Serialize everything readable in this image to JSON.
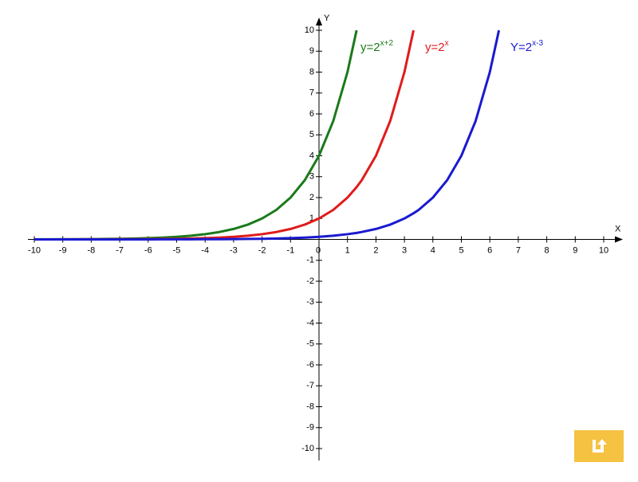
{
  "chart_data": {
    "type": "line",
    "x_label": "X",
    "y_label": "Y",
    "xlim": [
      -10,
      10
    ],
    "ylim": [
      -10,
      10
    ],
    "xticks": [
      -10,
      -9,
      -8,
      -7,
      -6,
      -5,
      -4,
      -3,
      -2,
      -1,
      0,
      1,
      2,
      3,
      4,
      5,
      6,
      7,
      8,
      9,
      10
    ],
    "yticks": [
      -10,
      -9,
      -8,
      -7,
      -6,
      -5,
      -4,
      -3,
      -2,
      -1,
      1,
      2,
      3,
      4,
      5,
      6,
      7,
      8,
      9,
      10
    ],
    "x": [
      -10,
      -9.5,
      -9,
      -8.5,
      -8,
      -7.5,
      -7,
      -6.5,
      -6,
      -5.5,
      -5,
      -4.5,
      -4,
      -3.5,
      -3,
      -2.5,
      -2,
      -1.5,
      -1,
      -0.5,
      0,
      0.5,
      1,
      1.32,
      1.5,
      2,
      2.5,
      3,
      3.32,
      3.5,
      4,
      4.5,
      5,
      5.5,
      6,
      6.32
    ],
    "series": [
      {
        "name_parts": [
          "y=2",
          "x+2"
        ],
        "color": "#1a7a1a",
        "values": [
          0.0039,
          0.0055,
          0.0078,
          0.011,
          0.016,
          0.022,
          0.031,
          0.044,
          0.063,
          0.088,
          0.125,
          0.177,
          0.25,
          0.354,
          0.5,
          0.707,
          1,
          1.41,
          2,
          2.83,
          4,
          5.66,
          8,
          10,
          null,
          null,
          null,
          null,
          null,
          null,
          null,
          null,
          null,
          null,
          null,
          null
        ]
      },
      {
        "name_parts": [
          "y=2",
          "x"
        ],
        "color": "#e01b1b",
        "values": [
          0.001,
          0.0014,
          0.002,
          0.0028,
          0.0039,
          0.0055,
          0.0078,
          0.011,
          0.016,
          0.022,
          0.031,
          0.044,
          0.063,
          0.088,
          0.125,
          0.177,
          0.25,
          0.354,
          0.5,
          0.707,
          1,
          1.41,
          2,
          2.5,
          2.83,
          4,
          5.66,
          8,
          10,
          null,
          null,
          null,
          null,
          null,
          null,
          null
        ]
      },
      {
        "name_parts": [
          "Y=2",
          "x-3"
        ],
        "color": "#1a1ad0",
        "values": [
          0.0001,
          0.0002,
          0.0002,
          0.0003,
          0.0005,
          0.0007,
          0.001,
          0.0014,
          0.002,
          0.0028,
          0.0039,
          0.0055,
          0.0078,
          0.011,
          0.016,
          0.022,
          0.031,
          0.044,
          0.063,
          0.088,
          0.125,
          0.177,
          0.25,
          0.31,
          0.354,
          0.5,
          0.707,
          1,
          1.25,
          1.41,
          2,
          2.83,
          4,
          5.66,
          8,
          10
        ]
      }
    ]
  }
}
